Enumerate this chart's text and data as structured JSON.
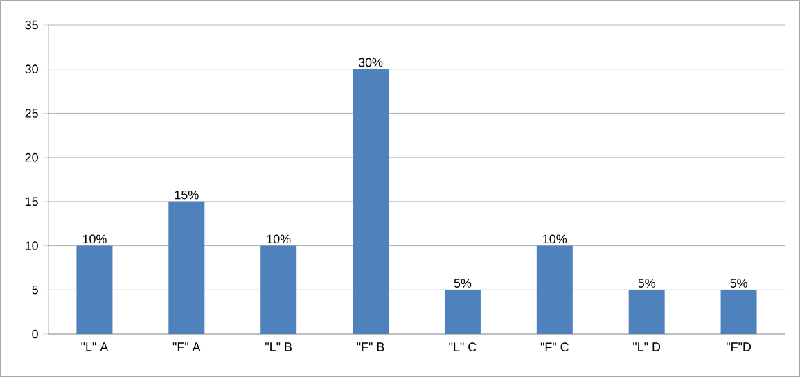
{
  "chart_data": {
    "type": "bar",
    "categories": [
      "\"L\" A",
      "\"F\" A",
      "\"L\" B",
      "\"F\" B",
      "\"L\" C",
      "\"F\" C",
      "\"L\" D",
      "\"F\"D"
    ],
    "values": [
      10,
      15,
      10,
      30,
      5,
      10,
      5,
      5
    ],
    "value_labels": [
      "10%",
      "15%",
      "10%",
      "30%",
      "5%",
      "10%",
      "5%",
      "5%"
    ],
    "color": "#4f81bd",
    "ylim": [
      0,
      35
    ],
    "yticks": [
      0,
      5,
      10,
      15,
      20,
      25,
      30,
      35
    ],
    "grid": "y"
  }
}
